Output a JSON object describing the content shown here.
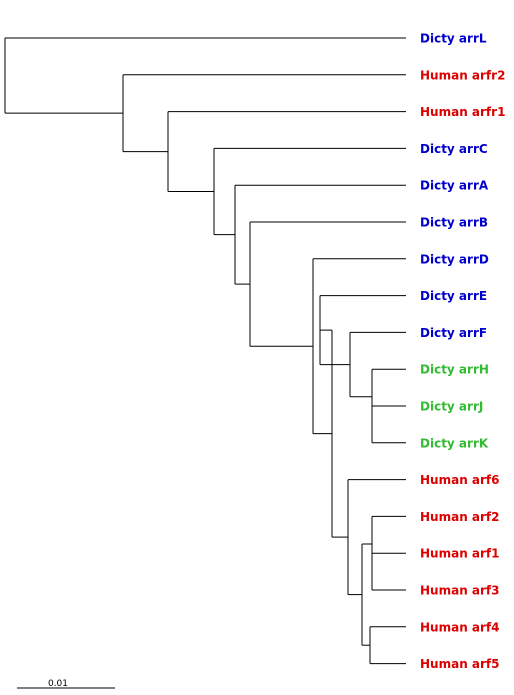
{
  "colors": {
    "dicty_blue": "#0000cc",
    "human_red": "#dd0000",
    "dicty_green": "#33bb33",
    "branch": "#000000"
  },
  "taxa": [
    {
      "id": "arrL",
      "label": "Dicty arrL",
      "color": "#0000cc"
    },
    {
      "id": "arfr2",
      "label": "Human arfr2",
      "color": "#dd0000"
    },
    {
      "id": "arfr1",
      "label": "Human arfr1",
      "color": "#dd0000"
    },
    {
      "id": "arrC",
      "label": "Dicty arrC",
      "color": "#0000cc"
    },
    {
      "id": "arrA",
      "label": "Dicty arrA",
      "color": "#0000cc"
    },
    {
      "id": "arrB",
      "label": "Dicty arrB",
      "color": "#0000cc"
    },
    {
      "id": "arrD",
      "label": "Dicty arrD",
      "color": "#0000cc"
    },
    {
      "id": "arrE",
      "label": "Dicty arrE",
      "color": "#0000cc"
    },
    {
      "id": "arrF",
      "label": "Dicty arrF",
      "color": "#0000cc"
    },
    {
      "id": "arrH",
      "label": "Dicty arrH",
      "color": "#33bb33"
    },
    {
      "id": "arrJ",
      "label": "Dicty arrJ",
      "color": "#33bb33"
    },
    {
      "id": "arrK",
      "label": "Dicty arrK",
      "color": "#33bb33"
    },
    {
      "id": "arf6",
      "label": "Human arf6",
      "color": "#dd0000"
    },
    {
      "id": "arf2",
      "label": "Human arf2",
      "color": "#dd0000"
    },
    {
      "id": "arf1",
      "label": "Human arf1",
      "color": "#dd0000"
    },
    {
      "id": "arf3",
      "label": "Human arf3",
      "color": "#dd0000"
    },
    {
      "id": "arf4",
      "label": "Human arf4",
      "color": "#dd0000"
    },
    {
      "id": "arf5",
      "label": "Human arf5",
      "color": "#dd0000"
    }
  ],
  "scale_bar": {
    "label": "0.01"
  }
}
